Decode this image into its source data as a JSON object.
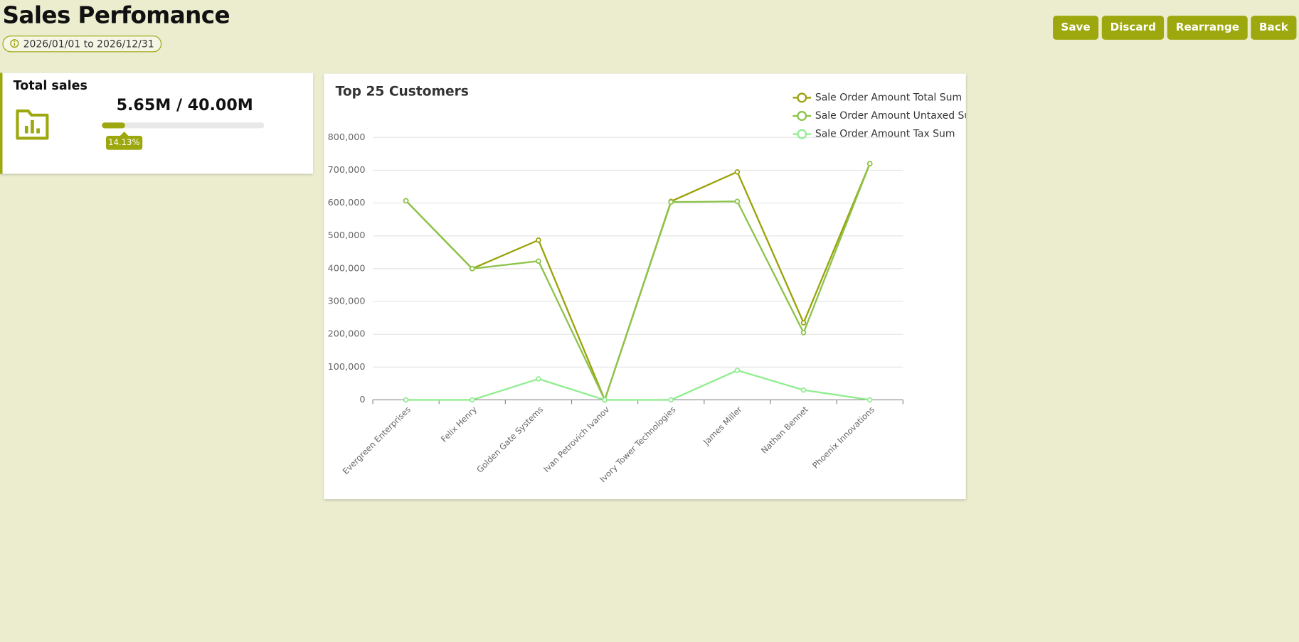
{
  "header": {
    "title": "Sales Perfomance",
    "date_range": "2026/01/01 to 2026/12/31",
    "buttons": [
      "Save",
      "Discard",
      "Rearrange",
      "Back"
    ]
  },
  "kpi": {
    "title": "Total sales",
    "value_text": "5.65M / 40.00M",
    "progress": 14.13,
    "progress_label": "14.13%"
  },
  "chart_data": {
    "type": "line",
    "title": "Top 25 Customers",
    "categories": [
      "Evergreen Enterprises",
      "Felix Henry",
      "Golden Gate Systems",
      "Ivan Petrovich Ivanov",
      "Ivory Tower Technologies",
      "James Miller",
      "Nathan Bennet",
      "Phoenix Innovations"
    ],
    "series": [
      {
        "name": "Sale Order Amount Total Sum",
        "color": "#9aa30a",
        "values": [
          607000,
          400000,
          487000,
          0,
          605000,
          695000,
          235000,
          720000
        ]
      },
      {
        "name": "Sale Order Amount Untaxed Sum",
        "color": "#8bc34a",
        "values": [
          607000,
          400000,
          423000,
          0,
          603000,
          605000,
          205000,
          720000
        ]
      },
      {
        "name": "Sale Order Amount Tax Sum",
        "color": "#90ee90",
        "values": [
          0,
          0,
          64000,
          0,
          0,
          90000,
          30000,
          0
        ]
      }
    ],
    "ylim": [
      0,
      800000
    ],
    "yticks": [
      0,
      {
        "value": 100000,
        "label": "100,000"
      },
      {
        "value": 200000,
        "label": "200,000"
      },
      {
        "value": 300000,
        "label": "300,000"
      },
      {
        "value": 400000,
        "label": "400,000"
      },
      {
        "value": 500000,
        "label": "500,000"
      },
      {
        "value": 600000,
        "label": "600,000"
      },
      {
        "value": 700000,
        "label": "700,000"
      },
      {
        "value": 800000,
        "label": "800,000"
      }
    ],
    "grid": true,
    "legend": "top-right"
  }
}
